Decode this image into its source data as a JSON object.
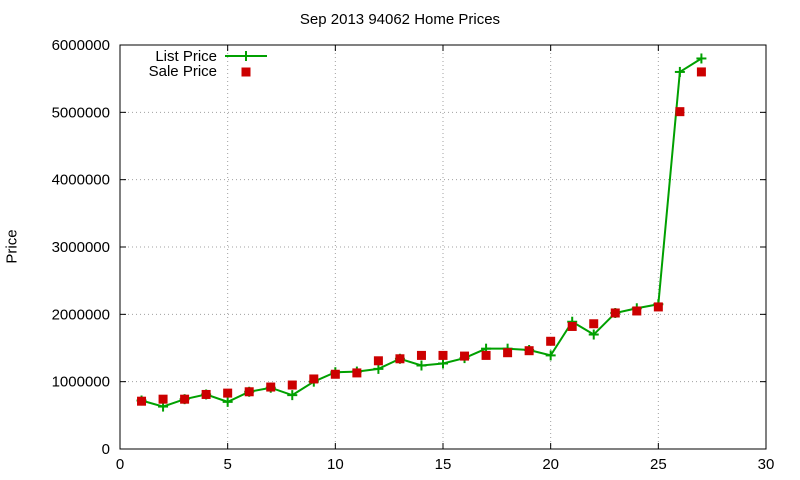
{
  "chart_data": {
    "type": "line",
    "title": "Sep 2013 94062 Home Prices",
    "xlabel": "",
    "ylabel": "Price",
    "xlim": [
      0,
      30
    ],
    "ylim": [
      0,
      6000000
    ],
    "xticks": [
      "0",
      "5",
      "10",
      "15",
      "20",
      "25",
      "30"
    ],
    "yticks": [
      "0",
      "1000000",
      "2000000",
      "3000000",
      "4000000",
      "5000000",
      "6000000"
    ],
    "grid": true,
    "legend": "top-left",
    "x": [
      1,
      2,
      3,
      4,
      5,
      6,
      7,
      8,
      9,
      10,
      11,
      12,
      13,
      14,
      15,
      16,
      17,
      18,
      19,
      20,
      21,
      22,
      23,
      24,
      25,
      26,
      27
    ],
    "series": [
      {
        "name": "List Price",
        "style": "line+cross",
        "color": "#00a000",
        "values": [
          720000,
          630000,
          740000,
          810000,
          700000,
          850000,
          910000,
          800000,
          1000000,
          1140000,
          1150000,
          1190000,
          1340000,
          1240000,
          1270000,
          1350000,
          1490000,
          1490000,
          1470000,
          1390000,
          1890000,
          1700000,
          2020000,
          2090000,
          2150000,
          5600000,
          5800000
        ]
      },
      {
        "name": "Sale Price",
        "style": "points",
        "color": "#cc0000",
        "values": [
          710000,
          740000,
          740000,
          810000,
          830000,
          850000,
          920000,
          950000,
          1040000,
          1110000,
          1130000,
          1310000,
          1340000,
          1390000,
          1390000,
          1380000,
          1390000,
          1430000,
          1460000,
          1600000,
          1820000,
          1860000,
          2020000,
          2050000,
          2110000,
          5010000,
          5600000
        ]
      }
    ]
  }
}
